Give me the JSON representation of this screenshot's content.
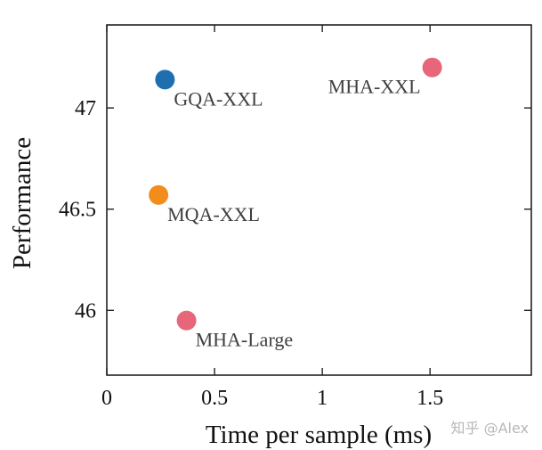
{
  "chart_data": {
    "type": "scatter",
    "title": "",
    "xlabel": "Time per sample (ms)",
    "ylabel": "Performance",
    "xlim": [
      0,
      1.97
    ],
    "ylim": [
      45.68,
      47.41
    ],
    "grid": false,
    "x_ticks": [
      0,
      0.5,
      1,
      1.5
    ],
    "x_tick_labels": [
      "0",
      "0.5",
      "1",
      "1.5"
    ],
    "y_ticks": [
      46,
      46.5,
      47
    ],
    "y_tick_labels": [
      "46",
      "46.5",
      "47"
    ],
    "points": [
      {
        "label": "MHA-XXL",
        "x": 1.51,
        "y": 47.2,
        "color": "#e8667a",
        "label_position": "left"
      },
      {
        "label": "GQA-XXL",
        "x": 0.27,
        "y": 47.14,
        "color": "#1f6eb0",
        "label_position": "right"
      },
      {
        "label": "MQA-XXL",
        "x": 0.24,
        "y": 46.57,
        "color": "#f28c1c",
        "label_position": "right"
      },
      {
        "label": "MHA-Large",
        "x": 0.37,
        "y": 45.95,
        "color": "#e8667a",
        "label_position": "right"
      }
    ]
  },
  "watermark": "知乎 @Alex"
}
